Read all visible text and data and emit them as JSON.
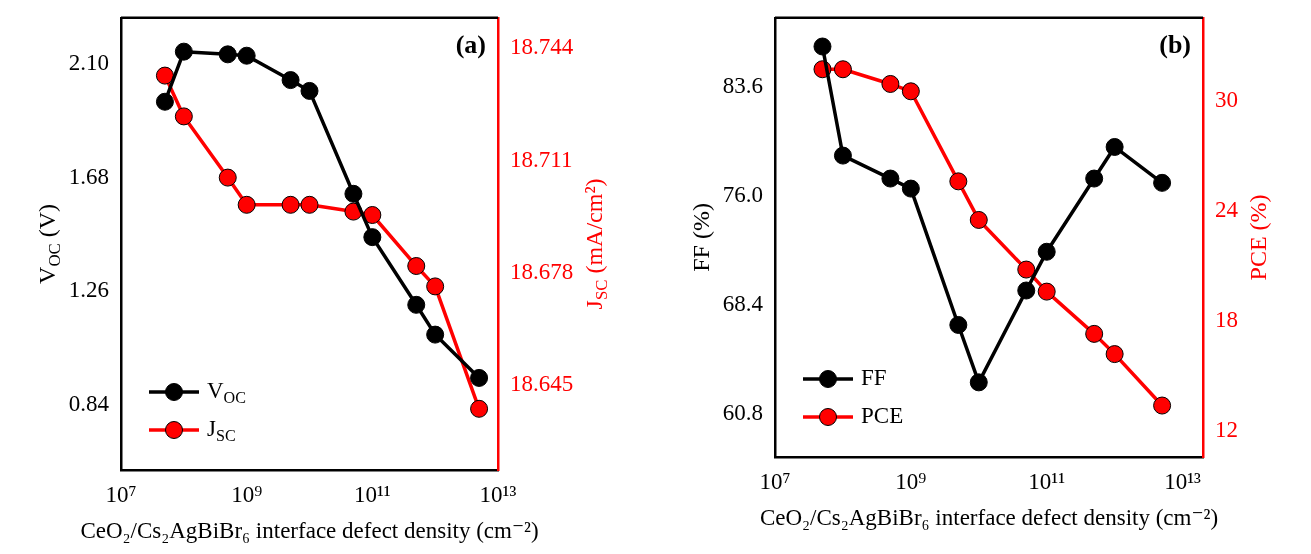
{
  "chart_data": [
    {
      "type": "line",
      "xlabel": "CeO₂/Cs₂AgBiBr₆ interface defect density (cm⁻²)",
      "ylabel": "V$_{OC}$ (V)",
      "y2label": "J$_{SC}$ (mA/cm²)",
      "annotations": [
        "(a)"
      ],
      "x": [
        50000000.0,
        100000000.0,
        500000000.0,
        1000000000.0,
        5000000000.0,
        10000000000.0,
        50000000000.0,
        100000000000.0,
        500000000000.0,
        1000000000000.0,
        5000000000000.0
      ],
      "log": "x",
      "xlim": [
        10000000.0,
        10000000000000.0
      ],
      "xticks": [
        {
          "value": 10000000.0,
          "label": "10⁷"
        },
        {
          "value": 1000000000.0,
          "label": "10⁹"
        },
        {
          "value": 100000000000.0,
          "label": "10¹¹"
        },
        {
          "value": 10000000000000.0,
          "label": "10¹³"
        }
      ],
      "ylim": [
        0.6,
        2.27
      ],
      "yticks": [
        0.84,
        1.26,
        1.68,
        {
          "value": 2.1,
          "label": "2.10"
        }
      ],
      "y2lim": [
        18.62,
        18.753
      ],
      "y2ticks": [
        18.645,
        18.678,
        18.711,
        18.744
      ],
      "grid": false,
      "legend": "bottom left",
      "marker": "circle",
      "line_style": "solid",
      "series": [
        {
          "name": "V$_{OC}$",
          "color": "#000000",
          "values": [
            1.96,
            2.145,
            2.135,
            2.13,
            2.04,
            2.0,
            1.62,
            1.46,
            1.21,
            1.1,
            0.94
          ]
        },
        {
          "name": "J$_{SC}$",
          "color": "#ff0000",
          "axis": "y2",
          "values": [
            18.736,
            18.724,
            18.706,
            18.698,
            18.698,
            18.698,
            18.696,
            18.695,
            18.68,
            18.674,
            18.638
          ]
        }
      ]
    },
    {
      "type": "line",
      "xlabel": "CeO₂/Cs₂AgBiBr₆ interface defect density (cm⁻²)",
      "ylabel": "FF (%)",
      "y2label": "PCE (%)",
      "annotations": [
        "(b)"
      ],
      "x": [
        50000000.0,
        100000000.0,
        500000000.0,
        1000000000.0,
        5000000000.0,
        10000000000.0,
        50000000000.0,
        100000000000.0,
        500000000000.0,
        1000000000000.0,
        5000000000000.0
      ],
      "log": "x",
      "xlim": [
        10000000.0,
        20000000000000.0
      ],
      "xticks": [
        {
          "value": 10000000.0,
          "label": "10⁷"
        },
        {
          "value": 1000000000.0,
          "label": "10⁹"
        },
        {
          "value": 100000000000.0,
          "label": "10¹¹"
        },
        {
          "value": 10000000000000.0,
          "label": "10¹³"
        }
      ],
      "ylim": [
        57.8,
        88.4
      ],
      "yticks": [
        60.8,
        68.4,
        {
          "value": 76,
          "label": "76.0"
        },
        83.6
      ],
      "y2lim": [
        10.6,
        34.5
      ],
      "y2ticks": [
        12,
        18,
        24,
        30
      ],
      "grid": false,
      "legend": "bottom left",
      "marker": "circle",
      "line_style": "solid",
      "series": [
        {
          "name": "FF",
          "color": "#000000",
          "values": [
            86.4,
            78.8,
            77.2,
            76.5,
            67.0,
            63.0,
            69.4,
            72.1,
            77.2,
            79.4,
            76.9
          ]
        },
        {
          "name": "PCE",
          "color": "#ff0000",
          "axis": "y2",
          "values": [
            31.7,
            31.7,
            30.9,
            30.5,
            25.6,
            23.5,
            20.8,
            19.6,
            17.3,
            16.2,
            13.4
          ]
        }
      ]
    }
  ]
}
